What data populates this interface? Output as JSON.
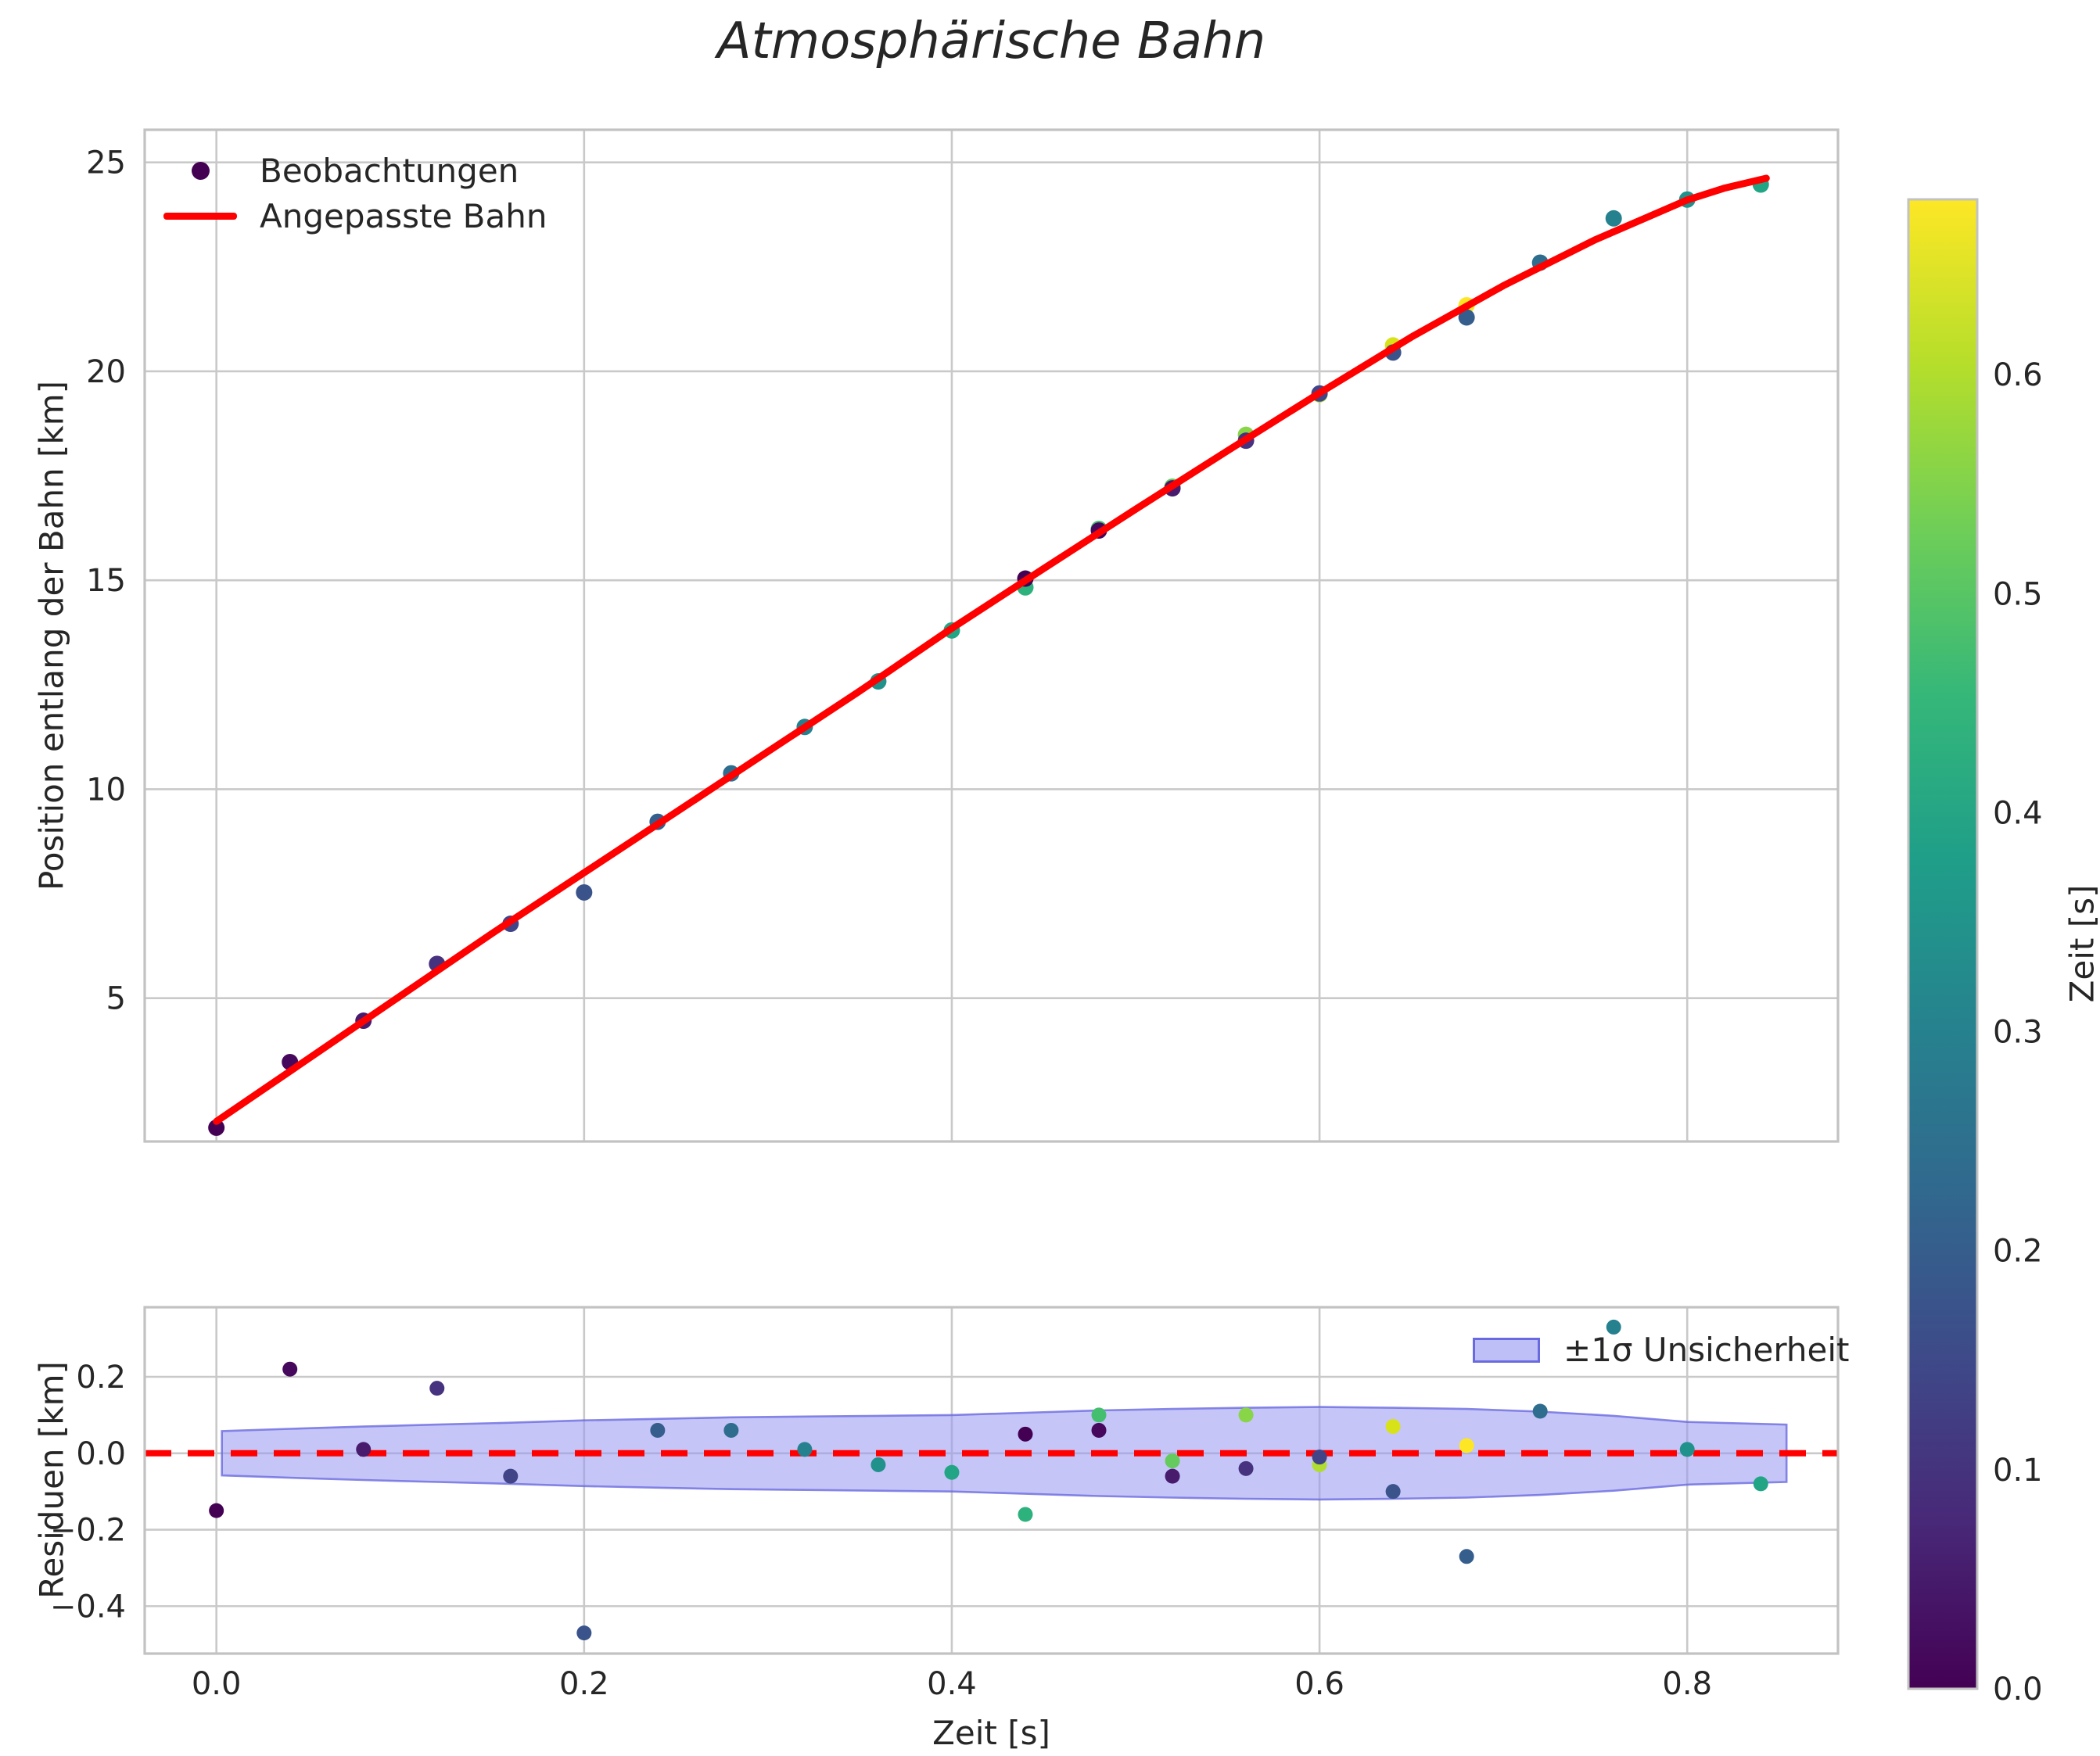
{
  "title": "Atmosphärische Bahn",
  "text_color": "#262626",
  "grid_color": "#c9c9c9",
  "spine_color": "#c2c2c2",
  "chart_data": [
    {
      "id": "position-panel",
      "type": "scatter",
      "title": "Atmosphärische Bahn",
      "xlabel": "",
      "ylabel": "Position entlang der Bahn [km]",
      "xlim": [
        -0.039,
        0.882
      ],
      "ylim": [
        1.57,
        25.78
      ],
      "grid": true,
      "x_ticks": [
        {
          "v": 0.0,
          "label": "0.0"
        },
        {
          "v": 0.2,
          "label": "0.2"
        },
        {
          "v": 0.4,
          "label": "0.4"
        },
        {
          "v": 0.6,
          "label": "0.6"
        },
        {
          "v": 0.8,
          "label": "0.8"
        }
      ],
      "y_ticks": [
        {
          "v": 5,
          "label": "5"
        },
        {
          "v": 10,
          "label": "10"
        },
        {
          "v": 15,
          "label": "15"
        },
        {
          "v": 20,
          "label": "20"
        },
        {
          "v": 25,
          "label": "25"
        }
      ],
      "legend": {
        "position": "upper left",
        "items": [
          {
            "label": "Beobachtungen",
            "type": "marker",
            "color": "#440154"
          },
          {
            "label": "Angepasste Bahn",
            "type": "line",
            "color": "#ff0000"
          }
        ]
      },
      "series": [
        {
          "name": "Beobachtungen",
          "type": "scatter",
          "marker_radius_main": 10.5,
          "marker_radius_residual": 9.5,
          "points": [
            {
              "t": 0.0,
              "s": 1.9,
              "residual": -0.15,
              "color": "#440154"
            },
            {
              "t": 0.04,
              "s": 3.47,
              "residual": 0.22,
              "color": "#46085c"
            },
            {
              "t": 0.08,
              "s": 4.46,
              "residual": 0.01,
              "color": "#481b6d"
            },
            {
              "t": 0.12,
              "s": 5.82,
              "residual": 0.17,
              "color": "#46327e"
            },
            {
              "t": 0.16,
              "s": 6.78,
              "residual": -0.06,
              "color": "#414487"
            },
            {
              "t": 0.2,
              "s": 7.53,
              "residual": -0.47,
              "color": "#3a538b"
            },
            {
              "t": 0.24,
              "s": 9.22,
              "residual": 0.06,
              "color": "#355e8d"
            },
            {
              "t": 0.28,
              "s": 10.38,
              "residual": 0.06,
              "color": "#2e6d8e"
            },
            {
              "t": 0.32,
              "s": 11.49,
              "residual": 0.01,
              "color": "#26818e"
            },
            {
              "t": 0.36,
              "s": 12.58,
              "residual": -0.03,
              "color": "#21918c"
            },
            {
              "t": 0.4,
              "s": 13.8,
              "residual": -0.05,
              "color": "#21a585"
            },
            {
              "t": 0.44,
              "s": 14.83,
              "residual": -0.16,
              "color": "#2db27d"
            },
            {
              "t": 0.48,
              "s": 16.23,
              "residual": 0.1,
              "color": "#44bf70"
            },
            {
              "t": 0.52,
              "s": 17.24,
              "residual": -0.02,
              "color": "#65cb5e"
            },
            {
              "t": 0.56,
              "s": 18.48,
              "residual": 0.1,
              "color": "#89d548"
            },
            {
              "t": 0.6,
              "s": 19.45,
              "residual": -0.03,
              "color": "#b0dd2f"
            },
            {
              "t": 0.64,
              "s": 20.62,
              "residual": 0.07,
              "color": "#d8e219"
            },
            {
              "t": 0.68,
              "s": 21.58,
              "residual": 0.02,
              "color": "#fde725"
            },
            {
              "t": 0.44,
              "s": 15.04,
              "residual": 0.05,
              "color": "#440154"
            },
            {
              "t": 0.48,
              "s": 16.19,
              "residual": 0.06,
              "color": "#46085c"
            },
            {
              "t": 0.52,
              "s": 17.2,
              "residual": -0.06,
              "color": "#481b6d"
            },
            {
              "t": 0.56,
              "s": 18.34,
              "residual": -0.04,
              "color": "#46327e"
            },
            {
              "t": 0.6,
              "s": 19.47,
              "residual": -0.01,
              "color": "#414487"
            },
            {
              "t": 0.64,
              "s": 20.45,
              "residual": -0.1,
              "color": "#3a538b"
            },
            {
              "t": 0.68,
              "s": 21.29,
              "residual": -0.27,
              "color": "#355e8d"
            },
            {
              "t": 0.72,
              "s": 22.6,
              "residual": 0.11,
              "color": "#2e6d8e"
            },
            {
              "t": 0.76,
              "s": 23.66,
              "residual": 0.33,
              "color": "#26818e"
            },
            {
              "t": 0.8,
              "s": 24.11,
              "residual": 0.01,
              "color": "#21918c"
            },
            {
              "t": 0.84,
              "s": 24.47,
              "residual": -0.08,
              "color": "#21a585"
            }
          ]
        },
        {
          "name": "Angepasste Bahn",
          "type": "line",
          "color": "#ff0000",
          "width": 9,
          "t": [
            0.0,
            0.05,
            0.1,
            0.15,
            0.2,
            0.25,
            0.3,
            0.35,
            0.4,
            0.45,
            0.5,
            0.55,
            0.6,
            0.65,
            0.7,
            0.75,
            0.8,
            0.82,
            0.843
          ],
          "s": [
            2.05,
            3.55,
            5.05,
            6.55,
            8.0,
            9.45,
            10.9,
            12.35,
            13.85,
            15.28,
            16.7,
            18.1,
            19.48,
            20.82,
            22.05,
            23.15,
            24.1,
            24.38,
            24.62
          ]
        }
      ],
      "colorbar": {
        "label": "Zeit [s]",
        "vmin": 0.0,
        "vmax": 0.68,
        "colormap": "viridis",
        "ticks": [
          {
            "v": 0.0,
            "label": "0.0"
          },
          {
            "v": 0.1,
            "label": "0.1"
          },
          {
            "v": 0.2,
            "label": "0.2"
          },
          {
            "v": 0.3,
            "label": "0.3"
          },
          {
            "v": 0.4,
            "label": "0.4"
          },
          {
            "v": 0.5,
            "label": "0.5"
          },
          {
            "v": 0.6,
            "label": "0.6"
          }
        ],
        "stops": [
          "#440154",
          "#482878",
          "#3e4a89",
          "#31688e",
          "#26828e",
          "#1f9e89",
          "#35b779",
          "#6ece58",
          "#b5de2b",
          "#fde725"
        ]
      }
    },
    {
      "id": "residual-panel",
      "type": "scatter",
      "xlabel": "Zeit [s]",
      "ylabel": "Residuen [km]",
      "xlim": [
        -0.039,
        0.882
      ],
      "ylim": [
        -0.524,
        0.382
      ],
      "grid": true,
      "x_ticks": [
        {
          "v": 0.0,
          "label": "0.0"
        },
        {
          "v": 0.2,
          "label": "0.2"
        },
        {
          "v": 0.4,
          "label": "0.4"
        },
        {
          "v": 0.6,
          "label": "0.6"
        },
        {
          "v": 0.8,
          "label": "0.8"
        }
      ],
      "y_ticks": [
        {
          "v": -0.4,
          "label": "−0.4"
        },
        {
          "v": -0.2,
          "label": "−0.2"
        },
        {
          "v": 0.0,
          "label": "0.0"
        },
        {
          "v": 0.2,
          "label": "0.2"
        }
      ],
      "zero_line": {
        "color": "#ff0000",
        "width": 8,
        "dash": [
          34,
          21
        ]
      },
      "band": {
        "label": "±1σ Unsicherheit",
        "fill": "rgba(150,150,243,0.55)",
        "edge": "#6a6ae0",
        "t": [
          0.003,
          0.04,
          0.08,
          0.12,
          0.16,
          0.2,
          0.24,
          0.28,
          0.32,
          0.36,
          0.4,
          0.44,
          0.48,
          0.52,
          0.56,
          0.6,
          0.64,
          0.68,
          0.72,
          0.76,
          0.8,
          0.854
        ],
        "sigma": [
          0.058,
          0.064,
          0.07,
          0.075,
          0.08,
          0.086,
          0.09,
          0.094,
          0.096,
          0.098,
          0.1,
          0.106,
          0.112,
          0.116,
          0.119,
          0.121,
          0.119,
          0.116,
          0.109,
          0.098,
          0.082,
          0.075
        ]
      }
    }
  ]
}
